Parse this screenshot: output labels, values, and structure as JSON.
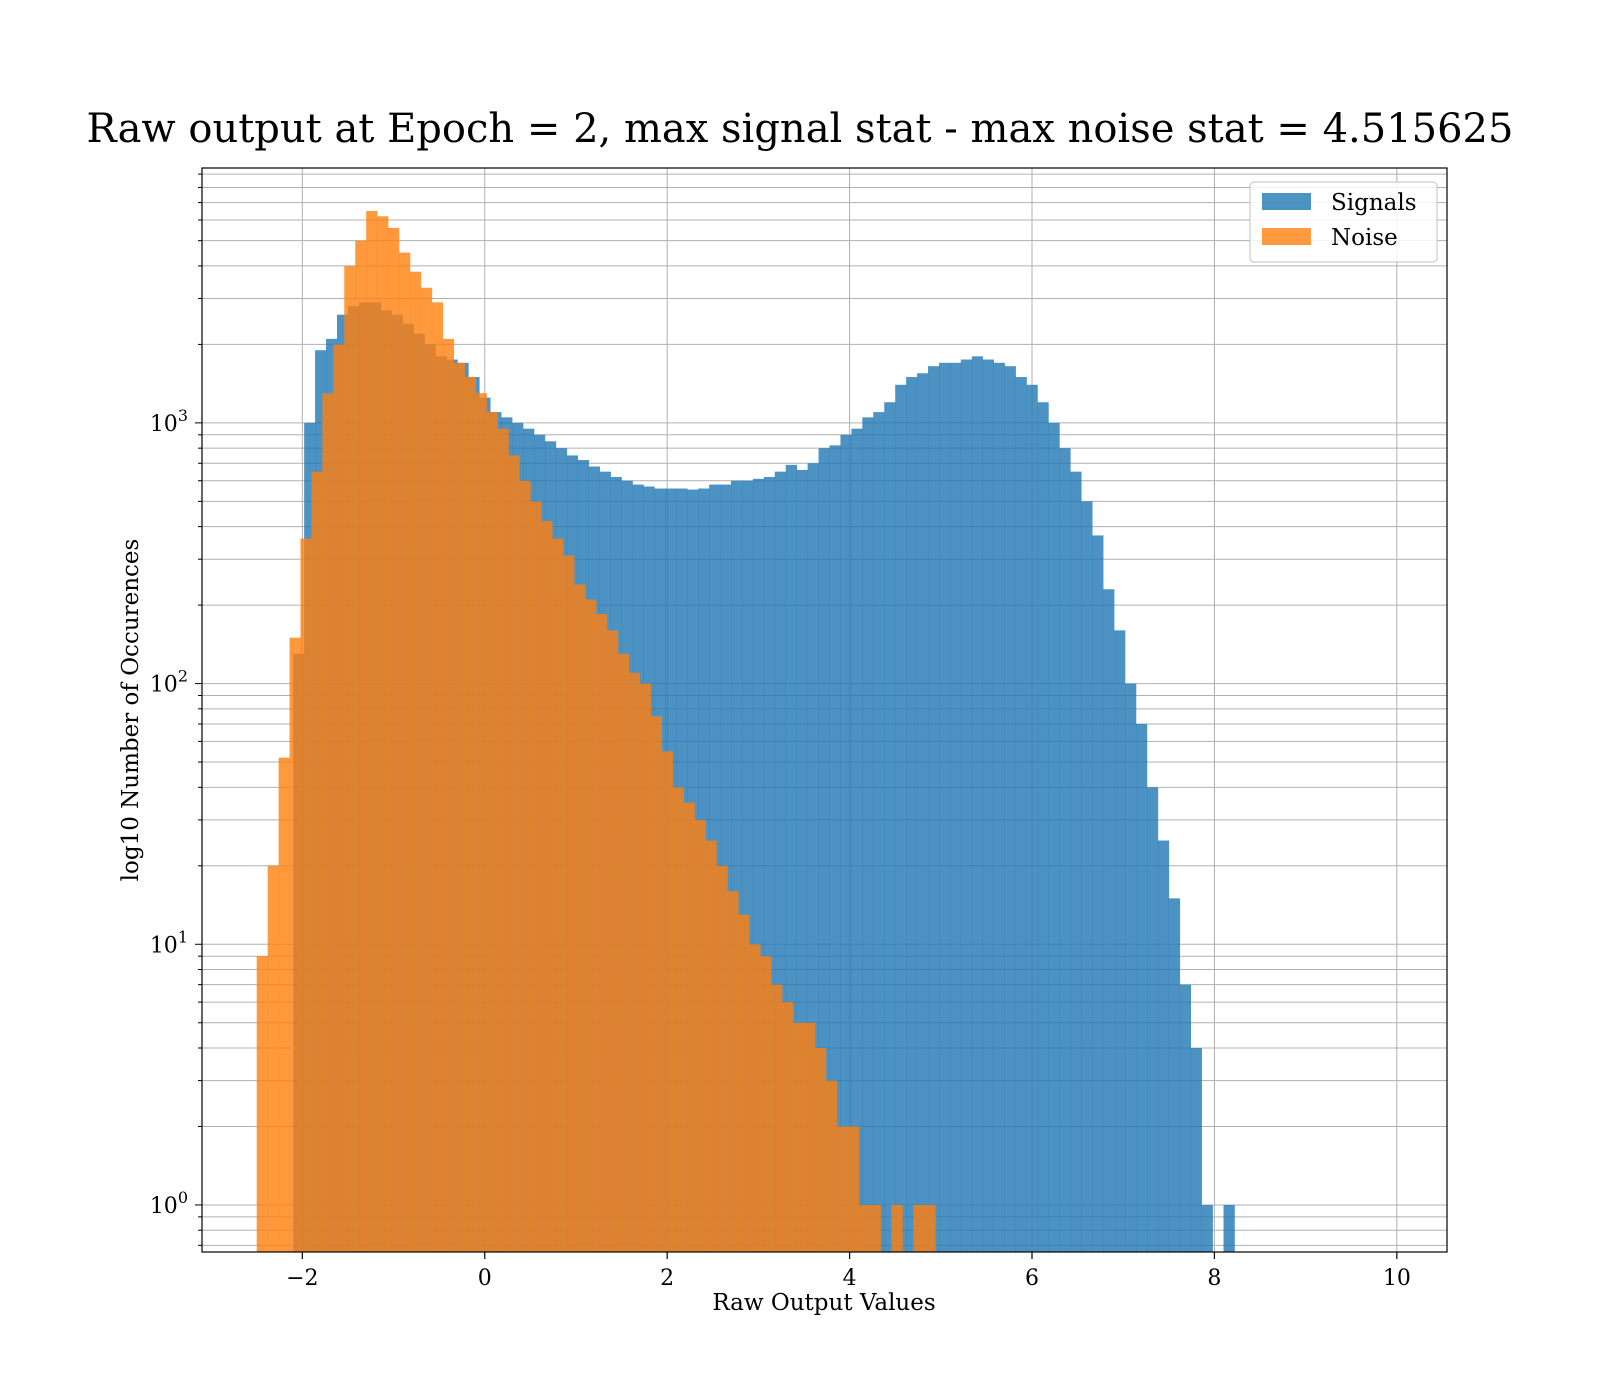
{
  "chart_data": {
    "type": "bar",
    "title": "Raw output at Epoch = 2, max signal stat - max noise stat = 4.515625",
    "xlabel": "Raw Output Values",
    "ylabel": "log10 Number of Occurences",
    "y_scale": "log",
    "xlim": [
      -3.1,
      10.55
    ],
    "ylim": [
      0.66,
      9500
    ],
    "grid": true,
    "legend_position": "top-right",
    "x_ticks": [
      -2,
      0,
      2,
      4,
      6,
      8,
      10
    ],
    "x_tick_labels": [
      "−2",
      "0",
      "2",
      "4",
      "6",
      "8",
      "10"
    ],
    "y_ticks": [
      1,
      10,
      100,
      1000
    ],
    "y_tick_labels": [
      {
        "base": "10",
        "exp": "0"
      },
      {
        "base": "10",
        "exp": "1"
      },
      {
        "base": "10",
        "exp": "2"
      },
      {
        "base": "10",
        "exp": "3"
      }
    ],
    "series": [
      {
        "name": "Signals",
        "color": "#1f77b4",
        "opacity": 0.8,
        "bin_start": -2.1,
        "bin_width": 0.12,
        "values": [
          130,
          1000,
          1900,
          2100,
          2600,
          2800,
          2900,
          2900,
          2700,
          2600,
          2400,
          2200,
          2000,
          1800,
          1750,
          1700,
          1500,
          1250,
          1100,
          1050,
          1000,
          950,
          900,
          850,
          800,
          750,
          720,
          680,
          650,
          620,
          600,
          580,
          570,
          560,
          560,
          560,
          555,
          560,
          580,
          580,
          600,
          600,
          610,
          620,
          650,
          690,
          660,
          700,
          800,
          820,
          900,
          950,
          1050,
          1100,
          1200,
          1400,
          1500,
          1550,
          1650,
          1700,
          1700,
          1750,
          1800,
          1750,
          1700,
          1650,
          1500,
          1400,
          1200,
          1000,
          800,
          650,
          500,
          370,
          230,
          160,
          100,
          70,
          40,
          25,
          15,
          7,
          4,
          1,
          0,
          1
        ]
      },
      {
        "name": "Noise",
        "color": "#ff7f0e",
        "opacity": 0.8,
        "bin_start": -2.5,
        "bin_width": 0.12,
        "values": [
          9,
          20,
          52,
          150,
          360,
          650,
          1300,
          2000,
          4000,
          5000,
          6500,
          6200,
          5600,
          4500,
          3800,
          3300,
          2900,
          2100,
          1700,
          1500,
          1300,
          1100,
          950,
          750,
          600,
          500,
          420,
          360,
          310,
          240,
          210,
          185,
          160,
          130,
          110,
          100,
          75,
          55,
          40,
          35,
          30,
          25,
          20,
          16,
          13,
          10,
          9,
          7,
          6,
          5,
          5,
          4,
          3,
          2,
          2,
          1,
          1,
          0,
          1,
          0,
          1,
          1,
          0
        ]
      }
    ]
  }
}
